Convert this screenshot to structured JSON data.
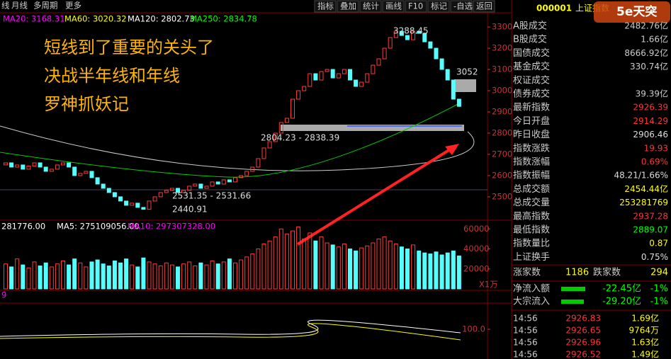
{
  "toolbar": {
    "left": [
      "线",
      "月线",
      "多周期",
      "更多"
    ],
    "right": [
      "指标",
      "叠加",
      "统计",
      "画线",
      "F10",
      "标记",
      "-自选",
      "返回"
    ]
  },
  "ma_legend": [
    "MA20: 3168.31",
    "MA60: 3020.32",
    "MA120: 2802.73",
    "MA250: 2834.78"
  ],
  "annotation": [
    "短线到了重要的关头了",
    "决战半年线和年线",
    "罗神抓妖记"
  ],
  "price_labels": [
    "3288.45",
    "3052",
    "2804.23 - 2838.39",
    "2531.35 - 2531.66",
    "2440.91"
  ],
  "price_chart": {
    "type": "candlestick",
    "up_color": "#ff3c3c",
    "down_color": "#54ffff",
    "ylim": [
      2393,
      3367
    ],
    "yticks": [
      2500,
      2600,
      2700,
      2800,
      2900,
      3000,
      3100,
      3200,
      3300
    ],
    "opens": [
      2650,
      2660,
      2640,
      2650,
      2630,
      2645,
      2660,
      2640,
      2620,
      2630,
      2650,
      2660,
      2640,
      2600,
      2610,
      2620,
      2590,
      2560,
      2540,
      2520,
      2500,
      2480,
      2460,
      2470,
      2450,
      2441,
      2480,
      2500,
      2520,
      2530,
      2540,
      2520,
      2530,
      2550,
      2560,
      2540,
      2550,
      2570,
      2560,
      2580,
      2570,
      2590,
      2600,
      2620,
      2640,
      2680,
      2730,
      2760,
      2800,
      2850,
      2870,
      2960,
      3000,
      3020,
      3080,
      3050,
      3090,
      3100,
      3060,
      3080,
      3100,
      3050,
      3020,
      3040,
      3080,
      3120,
      3150,
      3200,
      3250,
      3280,
      3260,
      3240,
      3280,
      3270,
      3230,
      3200,
      3150,
      3100,
      3050,
      2960
    ],
    "closes": [
      2660,
      2640,
      2650,
      2630,
      2645,
      2660,
      2640,
      2620,
      2630,
      2650,
      2660,
      2640,
      2600,
      2610,
      2620,
      2590,
      2560,
      2540,
      2520,
      2500,
      2480,
      2460,
      2470,
      2450,
      2441,
      2480,
      2500,
      2520,
      2530,
      2540,
      2520,
      2530,
      2550,
      2560,
      2540,
      2550,
      2570,
      2560,
      2580,
      2570,
      2590,
      2600,
      2620,
      2640,
      2680,
      2730,
      2760,
      2800,
      2850,
      2870,
      2960,
      3000,
      3020,
      3080,
      3050,
      3090,
      3100,
      3060,
      3080,
      3100,
      3050,
      3020,
      3040,
      3080,
      3120,
      3150,
      3200,
      3250,
      3280,
      3260,
      3240,
      3280,
      3270,
      3230,
      3200,
      3150,
      3100,
      3050,
      2960,
      2926
    ]
  },
  "volume_chart": {
    "type": "bar",
    "legend": [
      "281776.00",
      "MA5: 275109056.00",
      "MA10: 297307328.00"
    ],
    "unit": "X1万",
    "ylim": [
      0,
      68000
    ],
    "yticks": [
      20000,
      40000,
      60000
    ],
    "values": [
      25000,
      22000,
      30000,
      24000,
      21000,
      27000,
      23000,
      26000,
      22000,
      25000,
      28000,
      24000,
      30000,
      26000,
      22000,
      27000,
      29000,
      25000,
      23000,
      28000,
      26000,
      30000,
      24000,
      22000,
      31000,
      27000,
      25000,
      23000,
      26000,
      24000,
      22000,
      25000,
      27000,
      23000,
      26000,
      24000,
      28000,
      25000,
      27000,
      30000,
      26000,
      29000,
      32000,
      35000,
      40000,
      45000,
      48000,
      52000,
      60000,
      55000,
      58000,
      62000,
      50000,
      56000,
      48000,
      52000,
      46000,
      44000,
      42000,
      45000,
      40000,
      38000,
      41000,
      43000,
      46000,
      50000,
      52000,
      48000,
      45000,
      42000,
      40000,
      44000,
      38000,
      36000,
      35000,
      37000,
      34000,
      36000,
      38000,
      33000
    ]
  },
  "macd_chart": {
    "label": "9",
    "ylim": [
      40,
      150
    ],
    "yticks": [
      {
        "value": 100,
        "label": "100.0"
      }
    ]
  },
  "quote": {
    "code": "000001",
    "name": "上证指数",
    "logo": "5e天突",
    "rows": [
      [
        "A股成交",
        "2482.76亿"
      ],
      [
        "B股成交",
        "1.66亿"
      ],
      [
        "国债成交",
        "8666.92亿"
      ],
      [
        "基金成交",
        "330.74亿"
      ],
      [
        "权证成交"
      ],
      [
        "债券成交",
        "39.39亿"
      ],
      [
        "最新指数",
        "2926.39"
      ],
      [
        "今日开盘",
        "2914.29"
      ],
      [
        "昨日收盘",
        "2906.46"
      ],
      [
        "指数涨跌",
        "19.93"
      ],
      [
        "指数涨幅",
        "0.69%"
      ],
      [
        "指数振幅",
        "48.21/1.66%"
      ],
      [
        "总成交额",
        "2454.44亿"
      ],
      [
        "总成交量",
        "253281769"
      ],
      [
        "最高指数",
        "2937.28"
      ],
      [
        "最低指数",
        "2889.07"
      ],
      [
        "指数量比",
        "0.87"
      ],
      [
        "上证换手",
        "0.75%"
      ]
    ],
    "breadth": [
      "涨家数",
      "1186",
      "跌家数",
      "294"
    ],
    "flows": [
      [
        "净流入额",
        "-22.45亿",
        "-1%"
      ],
      [
        "大宗流入",
        "-29.20亿",
        "-1%"
      ]
    ],
    "trades": [
      [
        "14:56",
        "2926.83",
        "1.69亿"
      ],
      [
        "14:56",
        "2926.65",
        "9764万"
      ],
      [
        "14:56",
        "2926.96",
        "1.63亿"
      ],
      [
        "14:56",
        "2926.52",
        "1.49亿"
      ]
    ]
  }
}
